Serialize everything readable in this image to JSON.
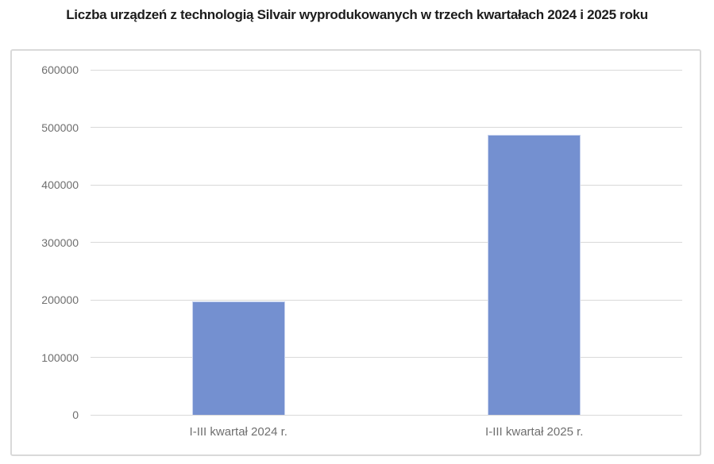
{
  "chart_data": {
    "type": "bar",
    "title": "Liczba urządzeń z technologią Silvair wyprodukowanych w trzech kwartałach 2024 i 2025 roku",
    "categories": [
      "I-III kwartał 2024 r.",
      "I-III kwartał 2025 r."
    ],
    "values": [
      197000,
      487000
    ],
    "xlabel": "",
    "ylabel": "",
    "ylim": [
      0,
      600000
    ],
    "yticks": [
      0,
      100000,
      200000,
      300000,
      400000,
      500000,
      600000
    ],
    "grid": true,
    "legend": false
  },
  "colors": {
    "bar": "#7490d0",
    "bar_border": "#c6d2ee",
    "gridline": "#d9d9d9",
    "axis_text": "#6f6f6f",
    "title_text": "#1c1c1c",
    "card_border": "#d9d9d9",
    "background": "#ffffff"
  }
}
